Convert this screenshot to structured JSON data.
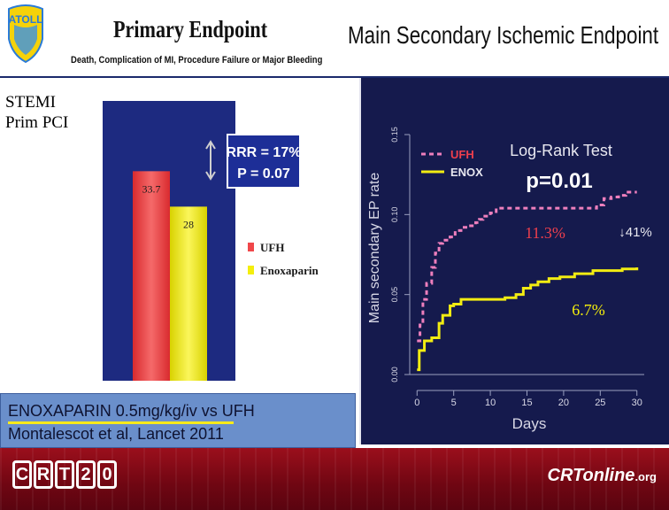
{
  "header": {
    "primary_title": "Primary Endpoint",
    "primary_subtitle": "Death, Complication of MI, Procedure Failure or Major Bleeding",
    "secondary_title": "Main Secondary Ischemic Endpoint",
    "logo_text": "ATOLL"
  },
  "population_label_line1": "STEMI",
  "population_label_line2": "Prim PCI",
  "citation": {
    "line1": "ENOXAPARIN 0.5mg/kg/iv   vs   UFH",
    "line2": "Montalescot  et al,  Lancet  2011"
  },
  "footer": {
    "crt_letters": [
      "C",
      "R",
      "T",
      "2",
      "0"
    ],
    "crt_online_main": "CRTonline",
    "crt_online_suffix": ".org"
  },
  "colors": {
    "ufh": "#f0474a",
    "enox": "#f4ee0c",
    "km_ufh": "#ee7fbd",
    "km_enox": "#f2ec12",
    "km_background": "#151a4d",
    "stat_box": "#1d2e97"
  },
  "chart_data": [
    {
      "type": "bar",
      "categories": [
        "UFH",
        "Enoxaparin"
      ],
      "values": [
        33.7,
        28
      ],
      "value_labels": [
        "33.7",
        "28"
      ],
      "legend": [
        {
          "name": "UFH",
          "color": "#f0474a"
        },
        {
          "name": "Enoxaparin",
          "color": "#f4ee0c"
        }
      ],
      "annotation": {
        "line1": "RRR = 17%",
        "line2": "P = 0.07"
      },
      "ylim": [
        0,
        45
      ]
    },
    {
      "type": "line",
      "step": true,
      "xlabel": "Days",
      "ylabel": "Main secondary EP rate",
      "xlim": [
        -1,
        31
      ],
      "ylim": [
        0,
        0.15
      ],
      "x_ticks": [
        0,
        5,
        10,
        15,
        20,
        25,
        30
      ],
      "y_ticks": [
        0.0,
        0.05,
        0.1,
        0.15
      ],
      "y_tick_labels": [
        "0.00",
        "0.05",
        "0.10",
        "0.15"
      ],
      "legend": [
        {
          "name": "UFH",
          "color": "#ee7fbd",
          "dashed": true
        },
        {
          "name": "ENOX",
          "color": "#f2ec12",
          "dashed": false
        }
      ],
      "test_title": "Log-Rank Test",
      "p_value": "p=0.01",
      "end_labels": {
        "ufh": "11.3%",
        "enox": "6.7%",
        "reduction": "↓41%"
      },
      "series": [
        {
          "name": "UFH",
          "x": [
            0,
            0.4,
            0.8,
            1.3,
            2.0,
            2.5,
            3.0,
            3.5,
            4.5,
            5.2,
            6.0,
            7.0,
            8.0,
            8.5,
            9.0,
            10.0,
            10.8,
            11.5,
            13.0,
            15.0,
            20.0,
            23.5,
            24.5,
            25.5,
            26.5,
            27.5,
            28.5,
            30.0
          ],
          "values": [
            0.021,
            0.031,
            0.047,
            0.057,
            0.067,
            0.076,
            0.082,
            0.084,
            0.086,
            0.09,
            0.092,
            0.093,
            0.095,
            0.097,
            0.099,
            0.101,
            0.104,
            0.104,
            0.104,
            0.104,
            0.104,
            0.104,
            0.106,
            0.11,
            0.111,
            0.112,
            0.114,
            0.114
          ]
        },
        {
          "name": "ENOX",
          "x": [
            0,
            0.3,
            1.0,
            2.0,
            3.0,
            3.5,
            4.5,
            5.0,
            6.0,
            8.0,
            10.0,
            12.0,
            13.5,
            14.5,
            15.5,
            16.5,
            18.0,
            19.5,
            21.5,
            24.0,
            26.0,
            28.0,
            30.0
          ],
          "values": [
            0.003,
            0.015,
            0.021,
            0.023,
            0.032,
            0.037,
            0.043,
            0.044,
            0.047,
            0.047,
            0.047,
            0.048,
            0.05,
            0.054,
            0.056,
            0.058,
            0.06,
            0.061,
            0.063,
            0.065,
            0.065,
            0.066,
            0.067
          ]
        }
      ]
    }
  ]
}
